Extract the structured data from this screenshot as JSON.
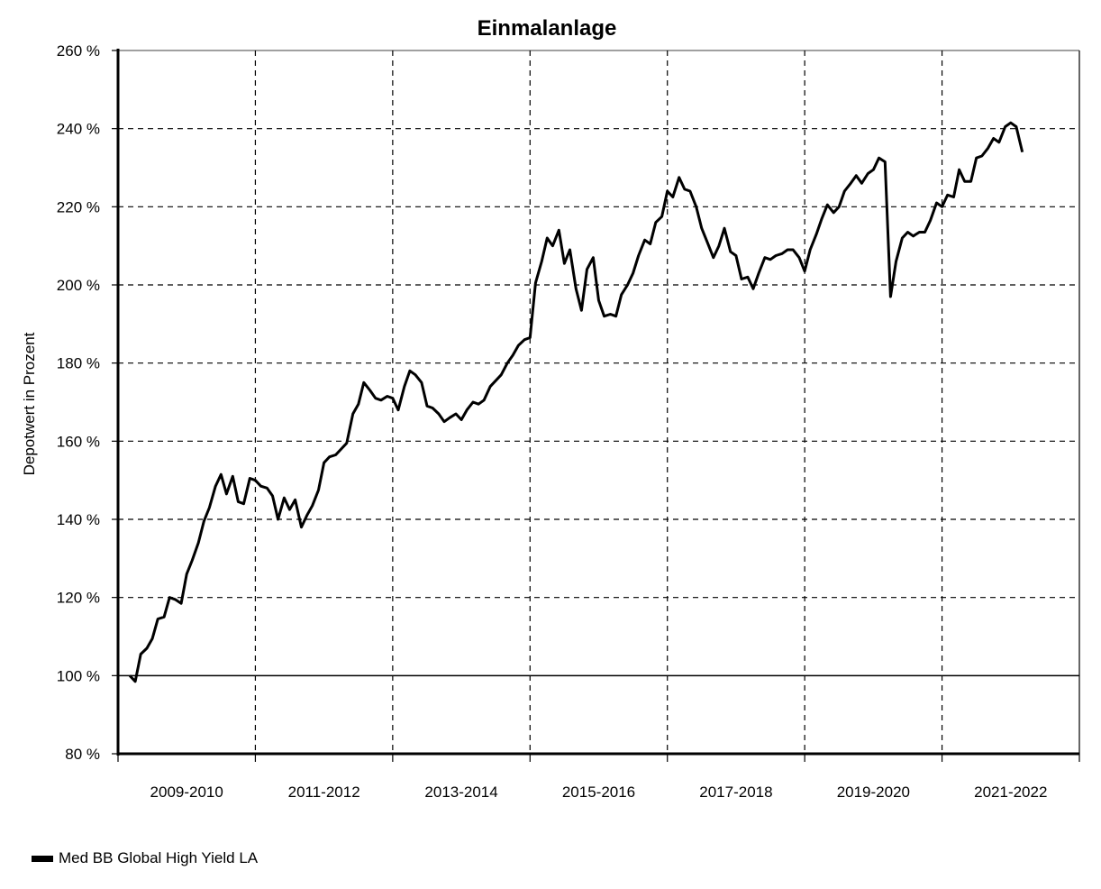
{
  "chart_data": {
    "type": "line",
    "title": "Einmalanlage",
    "xlabel": "",
    "ylabel": "Depotwert in Prozent",
    "ylim": [
      80,
      260
    ],
    "y_ticks": [
      80,
      100,
      120,
      140,
      160,
      180,
      200,
      220,
      240,
      260
    ],
    "y_tick_labels": [
      "80 %",
      "100 %",
      "120 %",
      "140 %",
      "160 %",
      "180 %",
      "200 %",
      "220 %",
      "240 %",
      "260 %"
    ],
    "x_categories": [
      "2009-2010",
      "2011-2012",
      "2013-2014",
      "2015-2016",
      "2017-2018",
      "2019-2020",
      "2021-2022"
    ],
    "xlim": [
      2009,
      2023
    ],
    "grid": true,
    "legend_position": "bottom-left",
    "series": [
      {
        "name": "Med BB Global High Yield LA",
        "color": "#000000",
        "points": [
          [
            2009.17,
            100
          ],
          [
            2009.25,
            98.5
          ],
          [
            2009.33,
            105.5
          ],
          [
            2009.42,
            107
          ],
          [
            2009.5,
            109.5
          ],
          [
            2009.58,
            114.5
          ],
          [
            2009.67,
            115
          ],
          [
            2009.75,
            120
          ],
          [
            2009.83,
            119.5
          ],
          [
            2009.92,
            118.5
          ],
          [
            2010.0,
            126
          ],
          [
            2010.08,
            129.5
          ],
          [
            2010.17,
            134
          ],
          [
            2010.25,
            139.5
          ],
          [
            2010.33,
            143
          ],
          [
            2010.42,
            148.5
          ],
          [
            2010.5,
            151.5
          ],
          [
            2010.58,
            146.5
          ],
          [
            2010.67,
            151
          ],
          [
            2010.75,
            144.5
          ],
          [
            2010.83,
            144
          ],
          [
            2010.92,
            150.5
          ],
          [
            2011.0,
            150
          ],
          [
            2011.08,
            148.5
          ],
          [
            2011.17,
            148
          ],
          [
            2011.25,
            146
          ],
          [
            2011.33,
            140
          ],
          [
            2011.42,
            145.5
          ],
          [
            2011.5,
            142.5
          ],
          [
            2011.58,
            145
          ],
          [
            2011.67,
            138
          ],
          [
            2011.75,
            141
          ],
          [
            2011.83,
            143.5
          ],
          [
            2011.92,
            147.5
          ],
          [
            2012.0,
            154.5
          ],
          [
            2012.08,
            156
          ],
          [
            2012.17,
            156.5
          ],
          [
            2012.25,
            158
          ],
          [
            2012.33,
            159.5
          ],
          [
            2012.42,
            167
          ],
          [
            2012.5,
            169.5
          ],
          [
            2012.58,
            175
          ],
          [
            2012.67,
            173
          ],
          [
            2012.75,
            171
          ],
          [
            2012.83,
            170.5
          ],
          [
            2012.92,
            171.5
          ],
          [
            2013.0,
            171
          ],
          [
            2013.08,
            168
          ],
          [
            2013.17,
            174
          ],
          [
            2013.25,
            178
          ],
          [
            2013.33,
            177
          ],
          [
            2013.42,
            175
          ],
          [
            2013.5,
            169
          ],
          [
            2013.58,
            168.5
          ],
          [
            2013.67,
            167
          ],
          [
            2013.75,
            165
          ],
          [
            2013.83,
            166
          ],
          [
            2013.92,
            167
          ],
          [
            2014.0,
            165.5
          ],
          [
            2014.08,
            168
          ],
          [
            2014.17,
            170
          ],
          [
            2014.25,
            169.5
          ],
          [
            2014.33,
            170.5
          ],
          [
            2014.42,
            174
          ],
          [
            2014.5,
            175.5
          ],
          [
            2014.58,
            177
          ],
          [
            2014.67,
            180
          ],
          [
            2014.75,
            182
          ],
          [
            2014.83,
            184.5
          ],
          [
            2014.92,
            186
          ],
          [
            2015.0,
            186.5
          ],
          [
            2015.08,
            200.5
          ],
          [
            2015.17,
            206
          ],
          [
            2015.25,
            212
          ],
          [
            2015.33,
            210
          ],
          [
            2015.42,
            214
          ],
          [
            2015.5,
            205.5
          ],
          [
            2015.58,
            209
          ],
          [
            2015.67,
            199
          ],
          [
            2015.75,
            193.5
          ],
          [
            2015.83,
            204
          ],
          [
            2015.92,
            207
          ],
          [
            2016.0,
            196
          ],
          [
            2016.08,
            192
          ],
          [
            2016.17,
            192.5
          ],
          [
            2016.25,
            192
          ],
          [
            2016.33,
            197.5
          ],
          [
            2016.42,
            200
          ],
          [
            2016.5,
            203
          ],
          [
            2016.58,
            207.5
          ],
          [
            2016.67,
            211.5
          ],
          [
            2016.75,
            210.5
          ],
          [
            2016.83,
            216
          ],
          [
            2016.92,
            217.5
          ],
          [
            2017.0,
            224
          ],
          [
            2017.08,
            222.5
          ],
          [
            2017.17,
            227.5
          ],
          [
            2017.25,
            224.5
          ],
          [
            2017.33,
            224
          ],
          [
            2017.42,
            220
          ],
          [
            2017.5,
            214.5
          ],
          [
            2017.58,
            211
          ],
          [
            2017.67,
            207
          ],
          [
            2017.75,
            210
          ],
          [
            2017.83,
            214.5
          ],
          [
            2017.92,
            208.5
          ],
          [
            2018.0,
            207.5
          ],
          [
            2018.08,
            201.5
          ],
          [
            2018.17,
            202
          ],
          [
            2018.25,
            199
          ],
          [
            2018.33,
            203
          ],
          [
            2018.42,
            207
          ],
          [
            2018.5,
            206.5
          ],
          [
            2018.58,
            207.5
          ],
          [
            2018.67,
            208
          ],
          [
            2018.75,
            209
          ],
          [
            2018.83,
            209
          ],
          [
            2018.92,
            207
          ],
          [
            2019.0,
            203.5
          ],
          [
            2019.08,
            209
          ],
          [
            2019.17,
            213
          ],
          [
            2019.25,
            217
          ],
          [
            2019.33,
            220.5
          ],
          [
            2019.42,
            218.5
          ],
          [
            2019.5,
            220
          ],
          [
            2019.58,
            224
          ],
          [
            2019.67,
            226
          ],
          [
            2019.75,
            228
          ],
          [
            2019.83,
            226
          ],
          [
            2019.92,
            228.5
          ],
          [
            2020.0,
            229.5
          ],
          [
            2020.08,
            232.5
          ],
          [
            2020.17,
            231.5
          ],
          [
            2020.25,
            197
          ],
          [
            2020.33,
            206
          ],
          [
            2020.42,
            212
          ],
          [
            2020.5,
            213.5
          ],
          [
            2020.58,
            212.5
          ],
          [
            2020.67,
            213.5
          ],
          [
            2020.75,
            213.5
          ],
          [
            2020.83,
            216.5
          ],
          [
            2020.92,
            221
          ],
          [
            2021.0,
            220
          ],
          [
            2021.08,
            223
          ],
          [
            2021.17,
            222.5
          ],
          [
            2021.25,
            229.5
          ],
          [
            2021.33,
            226.5
          ],
          [
            2021.42,
            226.5
          ],
          [
            2021.5,
            232.5
          ],
          [
            2021.58,
            233
          ],
          [
            2021.67,
            235
          ],
          [
            2021.75,
            237.5
          ],
          [
            2021.83,
            236.5
          ],
          [
            2021.92,
            240.5
          ],
          [
            2022.0,
            241.5
          ],
          [
            2022.08,
            240.5
          ],
          [
            2022.17,
            234
          ]
        ]
      }
    ]
  }
}
